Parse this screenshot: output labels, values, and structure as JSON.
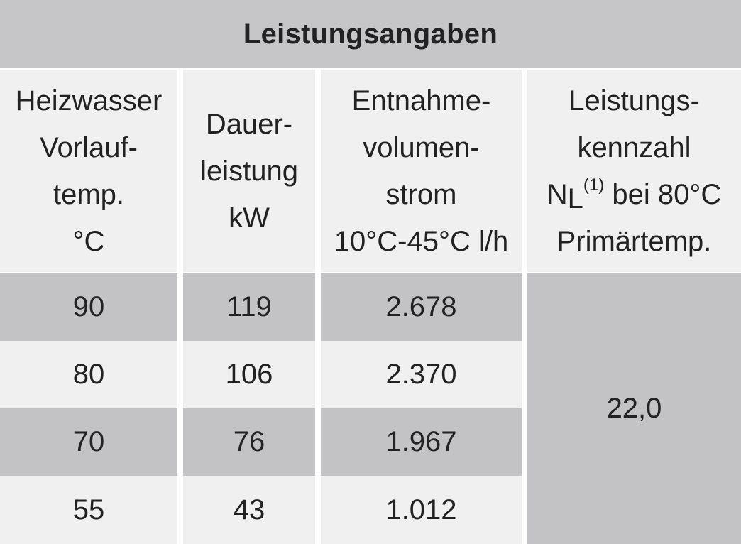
{
  "table": {
    "title": "Leistungsangaben",
    "headers": {
      "col1": [
        "Heizwasser",
        "Vorlauf-",
        "temp.",
        "°C"
      ],
      "col2": [
        "Dauer-",
        "leistung",
        "kW"
      ],
      "col3": [
        "Entnahme-",
        "volumen-",
        "strom",
        "10°C-45°C l/h"
      ],
      "col4": {
        "line1": "Leistungs-",
        "line2": "kennzahl",
        "line3_main": "N",
        "line3_sub": "L",
        "line3_sup": "(1)",
        "line3_rest": " bei 80°C",
        "line4": "Primärtemp."
      }
    },
    "rows": [
      {
        "temp": "90",
        "power": "119",
        "flow": "2.678"
      },
      {
        "temp": "80",
        "power": "106",
        "flow": "2.370"
      },
      {
        "temp": "70",
        "power": "76",
        "flow": "1.967"
      },
      {
        "temp": "55",
        "power": "43",
        "flow": "1.012"
      }
    ],
    "merged_value": "22,0"
  },
  "colors": {
    "title_bg": "#c6c6c8",
    "dark_row": "#c3c3c6",
    "light_row": "#f0f0f1"
  }
}
